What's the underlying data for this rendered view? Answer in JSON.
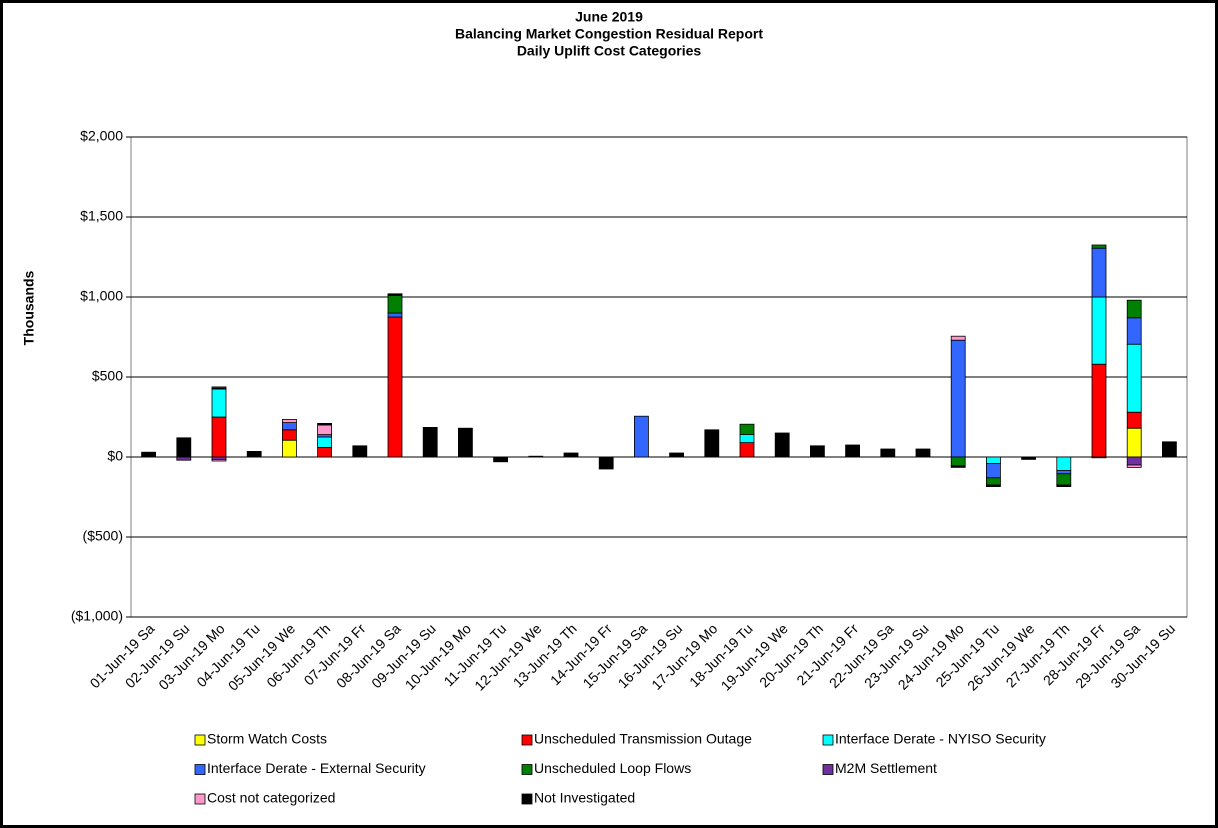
{
  "chart_data": {
    "type": "stacked_bar",
    "title": "June 2019",
    "subtitle": "Balancing Market Congestion Residual Report",
    "subtitle2": "Daily Uplift Cost Categories",
    "y_label": "Thousands",
    "categories": [
      "01-Jun-19 Sa",
      "02-Jun-19 Su",
      "03-Jun-19 Mo",
      "04-Jun-19 Tu",
      "05-Jun-19 We",
      "06-Jun-19 Th",
      "07-Jun-19 Fr",
      "08-Jun-19 Sa",
      "09-Jun-19 Su",
      "10-Jun-19 Mo",
      "11-Jun-19 Tu",
      "12-Jun-19 We",
      "13-Jun-19 Th",
      "14-Jun-19 Fr",
      "15-Jun-19 Sa",
      "16-Jun-19 Su",
      "17-Jun-19 Mo",
      "18-Jun-19 Tu",
      "19-Jun-19 We",
      "20-Jun-19 Th",
      "21-Jun-19 Fr",
      "22-Jun-19 Sa",
      "23-Jun-19 Su",
      "24-Jun-19 Mo",
      "25-Jun-19 Tu",
      "26-Jun-19 We",
      "27-Jun-19 Th",
      "28-Jun-19 Fr",
      "29-Jun-19 Sa",
      "30-Jun-19 Su"
    ],
    "series": [
      {
        "name": "Storm Watch Costs",
        "color": "#ffff00",
        "values": [
          0,
          0,
          0,
          0,
          105,
          0,
          0,
          0,
          0,
          0,
          0,
          0,
          0,
          0,
          0,
          0,
          0,
          0,
          0,
          0,
          0,
          0,
          0,
          0,
          0,
          0,
          0,
          0,
          180,
          0
        ]
      },
      {
        "name": "Unscheduled Transmission Outage",
        "color": "#ff0000",
        "values": [
          0,
          0,
          250,
          0,
          65,
          60,
          0,
          875,
          0,
          0,
          0,
          0,
          0,
          0,
          0,
          0,
          0,
          90,
          0,
          0,
          0,
          0,
          0,
          0,
          0,
          0,
          0,
          580,
          100,
          0
        ]
      },
      {
        "name": "Interface Derate - NYISO Security",
        "color": "#00ffff",
        "values": [
          0,
          0,
          175,
          0,
          0,
          65,
          0,
          0,
          0,
          0,
          0,
          0,
          0,
          0,
          0,
          0,
          0,
          50,
          0,
          0,
          0,
          0,
          0,
          0,
          -40,
          0,
          -85,
          420,
          425,
          0
        ]
      },
      {
        "name": "Interface Derate - External Security",
        "color": "#3366ff",
        "values": [
          0,
          0,
          5,
          0,
          45,
          15,
          0,
          25,
          0,
          0,
          0,
          0,
          0,
          0,
          255,
          0,
          0,
          0,
          0,
          0,
          0,
          0,
          0,
          730,
          -90,
          0,
          -20,
          305,
          165,
          0
        ]
      },
      {
        "name": "Unscheduled Loop Flows",
        "color": "#008000",
        "values": [
          0,
          0,
          8,
          0,
          0,
          0,
          0,
          110,
          0,
          0,
          0,
          0,
          0,
          0,
          0,
          0,
          0,
          65,
          0,
          0,
          0,
          0,
          0,
          -55,
          -45,
          0,
          -70,
          20,
          110,
          0
        ]
      },
      {
        "name": "M2M Settlement",
        "color": "#7030a0",
        "values": [
          0,
          -20,
          -15,
          0,
          0,
          0,
          0,
          5,
          0,
          0,
          0,
          0,
          0,
          0,
          0,
          0,
          0,
          0,
          0,
          0,
          0,
          0,
          0,
          0,
          0,
          0,
          0,
          0,
          -50,
          0
        ]
      },
      {
        "name": "Cost not categorized",
        "color": "#ff99cc",
        "values": [
          0,
          0,
          -10,
          0,
          20,
          60,
          0,
          5,
          0,
          0,
          0,
          0,
          0,
          0,
          0,
          0,
          0,
          0,
          0,
          0,
          0,
          0,
          0,
          25,
          0,
          0,
          0,
          0,
          -15,
          0
        ]
      },
      {
        "name": "Not Investigated",
        "color": "#000000",
        "values": [
          30,
          120,
          0,
          35,
          0,
          10,
          70,
          0,
          185,
          180,
          -30,
          5,
          25,
          -75,
          0,
          25,
          170,
          0,
          150,
          70,
          75,
          50,
          50,
          -10,
          -10,
          -15,
          -10,
          -5,
          0,
          95
        ]
      }
    ],
    "ylim": [
      -1000,
      2000
    ],
    "yticks": [
      {
        "value": -1000,
        "label": "($1,000)"
      },
      {
        "value": -500,
        "label": "($500)"
      },
      {
        "value": 0,
        "label": "$0"
      },
      {
        "value": 500,
        "label": "$500"
      },
      {
        "value": 1000,
        "label": "$1,000"
      },
      {
        "value": 1500,
        "label": "$1,500"
      },
      {
        "value": 2000,
        "label": "$2,000"
      }
    ],
    "negative_tick_color": "#ff0000",
    "grid": true
  }
}
